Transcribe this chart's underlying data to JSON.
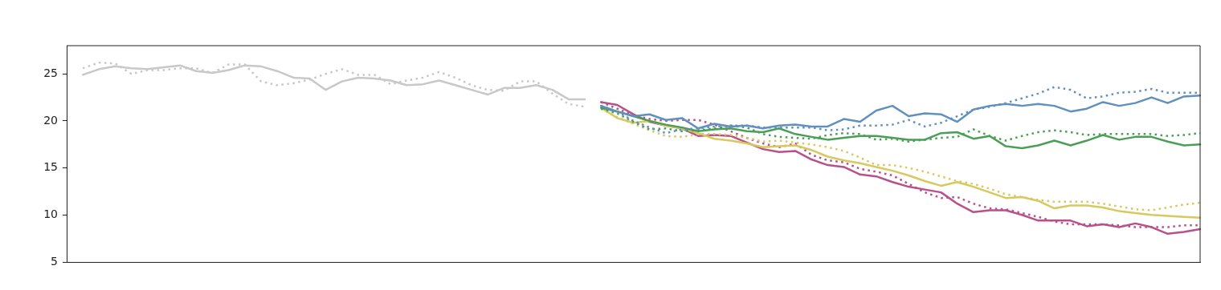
{
  "chart_data": {
    "type": "line",
    "categories": [
      null,
      null,
      null,
      null,
      null,
      null,
      null,
      null,
      null,
      null,
      null,
      null,
      null,
      null,
      null,
      null,
      null,
      null,
      null,
      null,
      null,
      null,
      null,
      null,
      null,
      null,
      null,
      null,
      null,
      null,
      null,
      null,
      null,
      null,
      null,
      null,
      null,
      null,
      null,
      null,
      null,
      null,
      null,
      null,
      null,
      null,
      null,
      null,
      null,
      null,
      null,
      null,
      null,
      null,
      null,
      null,
      null,
      null,
      null,
      null,
      null,
      null,
      null,
      null,
      null,
      null,
      null,
      null,
      null,
      null,
      null
    ],
    "ylim": [
      5,
      28
    ],
    "yticks": [
      5,
      10,
      15,
      20,
      25
    ],
    "grid": false,
    "legend": false,
    "tick_labels": "y",
    "marker": "none",
    "series": [
      {
        "color": "#c8c8c8",
        "line_style": "solid",
        "values": [
          null,
          24.9,
          25.5,
          25.8,
          25.6,
          25.5,
          25.7,
          25.9,
          25.3,
          25.1,
          25.4,
          25.9,
          25.8,
          25.3,
          24.6,
          24.5,
          23.3,
          24.2,
          24.6,
          24.5,
          24.3,
          23.8,
          23.9,
          24.3,
          23.8,
          23.3,
          22.8,
          23.5,
          23.5,
          23.8,
          23.3,
          22.3,
          22.3,
          null,
          null,
          null,
          null,
          null,
          null,
          null,
          null,
          null,
          null,
          null,
          null,
          null,
          null,
          null,
          null,
          null,
          null,
          null,
          null,
          null,
          null,
          null,
          null,
          null,
          null,
          null,
          null,
          null,
          null,
          null,
          null,
          null,
          null,
          null,
          null,
          null,
          null
        ]
      },
      {
        "color": "#c8c8c8",
        "line_style": "dotted",
        "values": [
          null,
          25.6,
          26.2,
          26.1,
          25.0,
          25.4,
          25.4,
          25.6,
          25.6,
          25.1,
          26.0,
          26.0,
          24.2,
          23.8,
          24.0,
          24.4,
          25.0,
          25.5,
          24.9,
          24.9,
          23.9,
          24.3,
          24.6,
          25.2,
          24.6,
          23.8,
          23.3,
          23.2,
          24.2,
          24.2,
          22.9,
          21.8,
          21.5,
          null,
          null,
          null,
          null,
          null,
          null,
          null,
          null,
          null,
          null,
          null,
          null,
          null,
          null,
          null,
          null,
          null,
          null,
          null,
          null,
          null,
          null,
          null,
          null,
          null,
          null,
          null,
          null,
          null,
          null,
          null,
          null,
          null,
          null,
          null,
          null,
          null,
          null
        ]
      },
      {
        "color": "#6090be",
        "line_style": "solid",
        "values": [
          null,
          null,
          null,
          null,
          null,
          null,
          null,
          null,
          null,
          null,
          null,
          null,
          null,
          null,
          null,
          null,
          null,
          null,
          null,
          null,
          null,
          null,
          null,
          null,
          null,
          null,
          null,
          null,
          null,
          null,
          null,
          null,
          null,
          21.6,
          21.0,
          20.5,
          20.7,
          20.1,
          20.3,
          19.2,
          19.7,
          19.4,
          19.5,
          19.2,
          19.5,
          19.6,
          19.4,
          19.4,
          20.2,
          19.9,
          21.1,
          21.6,
          20.5,
          20.8,
          20.7,
          19.9,
          21.2,
          21.6,
          21.8,
          21.6,
          21.8,
          21.6,
          21.0,
          21.3,
          22.0,
          21.6,
          21.9,
          22.5,
          21.9,
          22.6,
          22.7
        ]
      },
      {
        "color": "#6090be",
        "line_style": "dotted",
        "values": [
          null,
          null,
          null,
          null,
          null,
          null,
          null,
          null,
          null,
          null,
          null,
          null,
          null,
          null,
          null,
          null,
          null,
          null,
          null,
          null,
          null,
          null,
          null,
          null,
          null,
          null,
          null,
          null,
          null,
          null,
          null,
          null,
          null,
          21.6,
          21.0,
          20.0,
          19.3,
          18.7,
          19.1,
          19.2,
          19.4,
          19.5,
          19.5,
          19.3,
          19.3,
          19.3,
          19.3,
          19.0,
          19.1,
          19.5,
          19.5,
          19.6,
          20.1,
          19.4,
          19.8,
          20.5,
          21.2,
          21.5,
          21.9,
          22.4,
          22.9,
          23.6,
          23.3,
          22.4,
          22.6,
          23.0,
          23.1,
          23.4,
          23.0,
          23.0,
          23.0
        ]
      },
      {
        "color": "#4a9e55",
        "line_style": "solid",
        "values": [
          null,
          null,
          null,
          null,
          null,
          null,
          null,
          null,
          null,
          null,
          null,
          null,
          null,
          null,
          null,
          null,
          null,
          null,
          null,
          null,
          null,
          null,
          null,
          null,
          null,
          null,
          null,
          null,
          null,
          null,
          null,
          null,
          null,
          21.4,
          21.0,
          20.5,
          20.0,
          19.6,
          19.3,
          18.9,
          19.1,
          19.2,
          18.9,
          18.8,
          19.2,
          18.6,
          18.3,
          18.0,
          18.2,
          18.4,
          18.4,
          18.2,
          18.0,
          18.0,
          18.7,
          18.8,
          18.1,
          18.4,
          17.3,
          17.1,
          17.4,
          17.9,
          17.4,
          17.9,
          18.5,
          18.0,
          18.3,
          18.3,
          17.8,
          17.4,
          17.5
        ]
      },
      {
        "color": "#4a9e55",
        "line_style": "dotted",
        "values": [
          null,
          null,
          null,
          null,
          null,
          null,
          null,
          null,
          null,
          null,
          null,
          null,
          null,
          null,
          null,
          null,
          null,
          null,
          null,
          null,
          null,
          null,
          null,
          null,
          null,
          null,
          null,
          null,
          null,
          null,
          null,
          null,
          null,
          21.3,
          20.8,
          19.9,
          19.1,
          19.2,
          18.9,
          19.0,
          19.2,
          19.5,
          19.3,
          18.6,
          18.3,
          18.2,
          18.1,
          18.5,
          18.7,
          18.6,
          18.0,
          18.1,
          17.8,
          18.0,
          18.2,
          18.3,
          19.1,
          18.4,
          17.9,
          18.4,
          18.8,
          19.0,
          18.8,
          18.5,
          18.6,
          18.6,
          18.6,
          18.6,
          18.4,
          18.5,
          18.7
        ]
      },
      {
        "color": "#d8c860",
        "line_style": "solid",
        "values": [
          null,
          null,
          null,
          null,
          null,
          null,
          null,
          null,
          null,
          null,
          null,
          null,
          null,
          null,
          null,
          null,
          null,
          null,
          null,
          null,
          null,
          null,
          null,
          null,
          null,
          null,
          null,
          null,
          null,
          null,
          null,
          null,
          null,
          21.4,
          20.3,
          19.8,
          20.0,
          19.5,
          19.2,
          18.7,
          18.1,
          17.9,
          17.6,
          17.2,
          17.3,
          17.4,
          16.9,
          16.2,
          15.8,
          15.5,
          15.1,
          14.7,
          14.2,
          13.6,
          13.1,
          13.5,
          13.0,
          12.4,
          11.8,
          11.9,
          11.5,
          10.7,
          11.0,
          11.0,
          10.8,
          10.4,
          10.2,
          10.0,
          9.9,
          9.8,
          9.7
        ]
      },
      {
        "color": "#d8c860",
        "line_style": "dotted",
        "values": [
          null,
          null,
          null,
          null,
          null,
          null,
          null,
          null,
          null,
          null,
          null,
          null,
          null,
          null,
          null,
          null,
          null,
          null,
          null,
          null,
          null,
          null,
          null,
          null,
          null,
          null,
          null,
          null,
          null,
          null,
          null,
          null,
          null,
          21.3,
          20.4,
          19.7,
          19.0,
          18.4,
          18.3,
          18.6,
          18.6,
          18.5,
          18.2,
          17.8,
          17.9,
          17.7,
          17.5,
          17.2,
          16.8,
          16.1,
          15.3,
          15.3,
          15.0,
          14.6,
          14.1,
          13.6,
          13.3,
          12.8,
          12.2,
          11.9,
          11.6,
          11.4,
          11.4,
          11.4,
          11.2,
          10.9,
          10.6,
          10.5,
          10.8,
          11.1,
          11.3
        ]
      },
      {
        "color": "#b8508a",
        "line_style": "solid",
        "values": [
          null,
          null,
          null,
          null,
          null,
          null,
          null,
          null,
          null,
          null,
          null,
          null,
          null,
          null,
          null,
          null,
          null,
          null,
          null,
          null,
          null,
          null,
          null,
          null,
          null,
          null,
          null,
          null,
          null,
          null,
          null,
          null,
          null,
          22.0,
          21.7,
          20.7,
          19.9,
          19.5,
          19.2,
          18.4,
          18.5,
          18.4,
          17.7,
          17.0,
          16.7,
          16.8,
          15.9,
          15.3,
          15.1,
          14.3,
          14.1,
          13.5,
          13.0,
          12.7,
          12.4,
          11.2,
          10.3,
          10.5,
          10.5,
          10.0,
          9.4,
          9.4,
          9.4,
          8.8,
          9.0,
          8.7,
          9.1,
          8.7,
          8.0,
          8.2,
          8.5
        ]
      },
      {
        "color": "#b8508a",
        "line_style": "dotted",
        "values": [
          null,
          null,
          null,
          null,
          null,
          null,
          null,
          null,
          null,
          null,
          null,
          null,
          null,
          null,
          null,
          null,
          null,
          null,
          null,
          null,
          null,
          null,
          null,
          null,
          null,
          null,
          null,
          null,
          null,
          null,
          null,
          null,
          null,
          22.0,
          21.3,
          20.6,
          20.2,
          20.0,
          20.1,
          20.1,
          19.6,
          18.9,
          18.2,
          17.6,
          17.2,
          17.6,
          16.4,
          15.8,
          15.6,
          14.9,
          14.6,
          14.2,
          13.3,
          12.4,
          11.8,
          11.9,
          11.2,
          10.7,
          10.6,
          10.2,
          9.8,
          9.3,
          9.0,
          9.0,
          9.0,
          8.9,
          8.7,
          8.7,
          8.7,
          8.9,
          8.9
        ]
      }
    ]
  }
}
